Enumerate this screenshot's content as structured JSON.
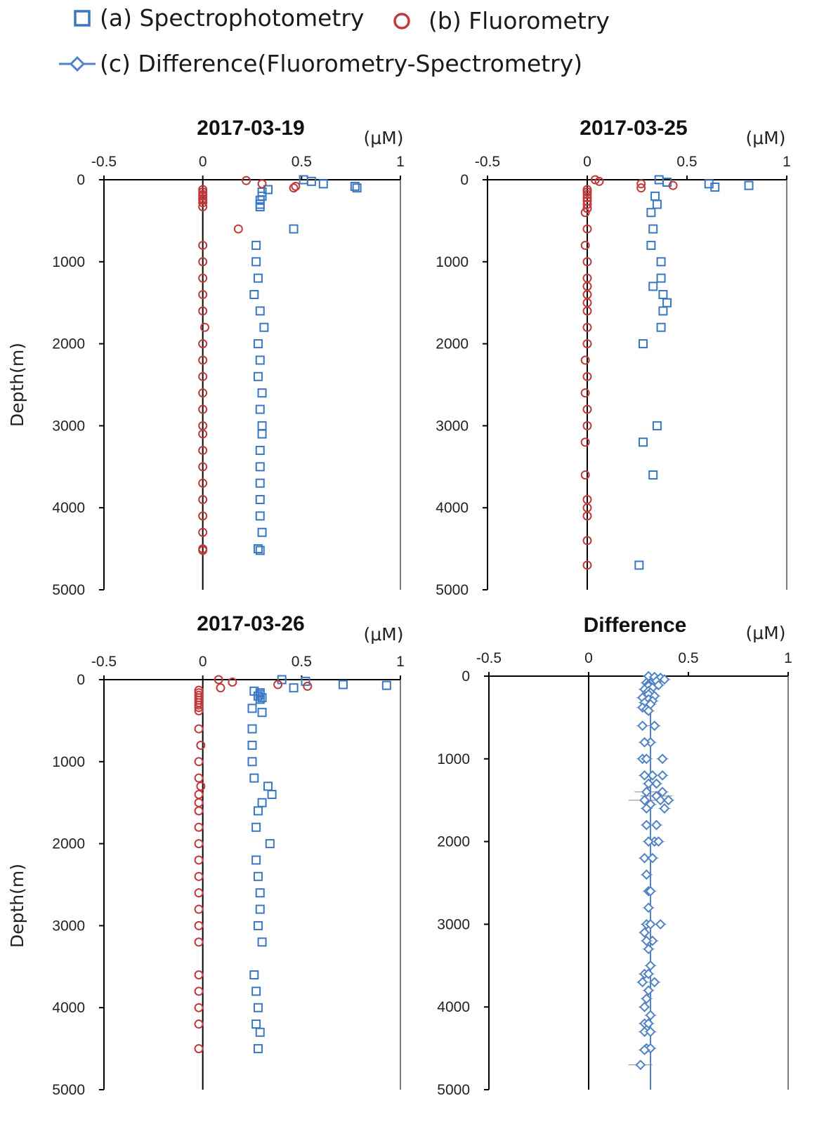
{
  "legend": [
    {
      "marker": "square",
      "label": "(a) Spectrophotometry"
    },
    {
      "marker": "circle",
      "label": "(b) Fluorometry"
    },
    {
      "marker": "diamond-line",
      "label": "(c) Difference(Fluorometry-Spectrometry)"
    }
  ],
  "colors": {
    "spectro": "#3a77c2",
    "fluoro": "#c0393b",
    "diff": "#4f82c6",
    "axis": "#000000"
  },
  "chart_data": [
    {
      "type": "scatter",
      "title": "2017-03-19",
      "unit": "(μM)",
      "ylabel": "Depth(m)",
      "xlim": [
        -0.5,
        1
      ],
      "ylim": [
        0,
        5000
      ],
      "y_inverted": true,
      "xticks": [
        "-0.5",
        "0",
        "0.5",
        "1"
      ],
      "yticks": [
        "0",
        "1000",
        "2000",
        "3000",
        "4000",
        "5000"
      ],
      "series": [
        {
          "key": "spectro",
          "marker": "square",
          "x": [
            0.51,
            0.55,
            0.61,
            0.77,
            0.78,
            0.33,
            0.3,
            0.3,
            0.29,
            0.29,
            0.29,
            0.46,
            0.27,
            0.27,
            0.28,
            0.26,
            0.29,
            0.31,
            0.28,
            0.29,
            0.28,
            0.3,
            0.29,
            0.3,
            0.3,
            0.29,
            0.29,
            0.29,
            0.29,
            0.29,
            0.3,
            0.28,
            0.29
          ],
          "y": [
            0,
            20,
            50,
            80,
            100,
            120,
            150,
            200,
            250,
            300,
            330,
            600,
            800,
            1000,
            1200,
            1400,
            1600,
            1800,
            2000,
            2200,
            2400,
            2600,
            2800,
            3000,
            3100,
            3300,
            3500,
            3700,
            3900,
            4100,
            4300,
            4500,
            4520
          ]
        },
        {
          "key": "fluoro",
          "marker": "circle",
          "x": [
            0.22,
            0.3,
            0.47,
            0.46,
            0,
            0,
            0,
            0,
            0,
            0,
            0,
            0,
            0.18,
            0,
            0,
            0,
            0,
            0,
            0.01,
            0,
            0,
            0,
            0,
            0,
            0,
            0,
            0,
            0,
            0,
            0,
            0,
            0,
            0,
            0
          ],
          "y": [
            10,
            50,
            80,
            100,
            120,
            150,
            180,
            200,
            230,
            250,
            280,
            330,
            600,
            800,
            1000,
            1200,
            1400,
            1600,
            1800,
            2000,
            2200,
            2400,
            2600,
            2800,
            3000,
            3100,
            3300,
            3500,
            3700,
            3900,
            4100,
            4300,
            4500,
            4520
          ]
        }
      ]
    },
    {
      "type": "scatter",
      "title": "2017-03-25",
      "unit": "(μM)",
      "xlim": [
        -0.5,
        1
      ],
      "ylim": [
        0,
        5000
      ],
      "y_inverted": true,
      "xticks": [
        "-0.5",
        "0",
        "0.5",
        "1"
      ],
      "yticks": [
        "0",
        "1000",
        "2000",
        "3000",
        "4000",
        "5000"
      ],
      "series": [
        {
          "key": "spectro",
          "marker": "square",
          "x": [
            0.36,
            0.4,
            0.61,
            0.64,
            0.81,
            0.34,
            0.35,
            0.32,
            0.33,
            0.32,
            0.37,
            0.37,
            0.33,
            0.38,
            0.4,
            0.38,
            0.37,
            0.28,
            0.35,
            0.28,
            0.33,
            0.26
          ],
          "y": [
            0,
            30,
            50,
            90,
            70,
            200,
            300,
            400,
            600,
            800,
            1000,
            1200,
            1300,
            1400,
            1500,
            1600,
            1800,
            2000,
            3000,
            3200,
            3600,
            4700
          ]
        },
        {
          "key": "fluoro",
          "marker": "circle",
          "x": [
            0.04,
            0.06,
            0.27,
            0.27,
            0.43,
            0,
            0,
            0,
            0,
            0,
            0,
            0,
            -0.01,
            0,
            -0.01,
            0,
            0,
            0,
            0,
            0,
            0,
            0,
            0,
            -0.01,
            0,
            -0.01,
            0,
            0,
            -0.01,
            -0.01,
            0,
            0,
            0
          ],
          "y": [
            0,
            20,
            50,
            100,
            70,
            120,
            150,
            180,
            220,
            260,
            300,
            350,
            400,
            600,
            800,
            1000,
            1200,
            1300,
            1400,
            1500,
            1600,
            1800,
            2000,
            2200,
            2400,
            2600,
            2800,
            3000,
            3200,
            3600,
            3900,
            4000,
            4100
          ]
        },
        {
          "key": "fluoro",
          "marker": "circle",
          "x": [
            0,
            0
          ],
          "y": [
            4400,
            4700
          ]
        }
      ]
    },
    {
      "type": "scatter",
      "title": "2017-03-26",
      "unit": "(μM)",
      "ylabel": "Depth(m)",
      "xlim": [
        -0.5,
        1
      ],
      "ylim": [
        0,
        5000
      ],
      "y_inverted": true,
      "xticks": [
        "-0.5",
        "0",
        "0.5",
        "1"
      ],
      "yticks": [
        "0",
        "1000",
        "2000",
        "3000",
        "4000",
        "5000"
      ],
      "series": [
        {
          "key": "spectro",
          "marker": "square",
          "x": [
            0.4,
            0.52,
            0.46,
            0.71,
            0.93,
            0.26,
            0.29,
            0.29,
            0.28,
            0.3,
            0.29,
            0.25,
            0.3,
            0.25,
            0.25,
            0.25,
            0.26,
            0.33,
            0.35,
            0.3,
            0.28,
            0.27,
            0.34,
            0.27,
            0.28,
            0.29,
            0.29,
            0.28,
            0.3,
            0.26,
            0.27,
            0.28,
            0.27,
            0.29,
            0.28
          ],
          "y": [
            0,
            20,
            100,
            60,
            70,
            140,
            160,
            180,
            200,
            220,
            240,
            350,
            400,
            600,
            800,
            1000,
            1200,
            1300,
            1400,
            1500,
            1600,
            1800,
            2000,
            2200,
            2400,
            2600,
            2800,
            3000,
            3200,
            3600,
            3800,
            4000,
            4200,
            4300,
            4500
          ]
        },
        {
          "key": "fluoro",
          "marker": "circle",
          "x": [
            0.08,
            0.15,
            0.38,
            0.53,
            0.09,
            -0.02,
            -0.02,
            -0.02,
            -0.02,
            -0.02,
            -0.02,
            -0.02,
            -0.02,
            -0.02,
            -0.02,
            -0.01,
            -0.02,
            -0.02,
            -0.01,
            -0.02,
            -0.02,
            -0.02,
            -0.02,
            -0.02,
            -0.02,
            -0.02,
            -0.02,
            -0.02,
            -0.02,
            -0.02,
            -0.02,
            -0.02,
            -0.02,
            -0.02,
            -0.02
          ],
          "y": [
            0,
            30,
            60,
            80,
            100,
            130,
            160,
            190,
            220,
            250,
            280,
            310,
            340,
            380,
            600,
            800,
            1000,
            1200,
            1300,
            1400,
            1500,
            1600,
            1800,
            2000,
            2200,
            2400,
            2600,
            2800,
            3000,
            3200,
            3600,
            3800,
            4000,
            4200,
            4500
          ]
        }
      ]
    },
    {
      "type": "scatter",
      "title": "Difference",
      "unit": "(μM)",
      "xlim": [
        -0.5,
        1
      ],
      "ylim": [
        0,
        5000
      ],
      "y_inverted": true,
      "xticks": [
        "-0.5",
        "0",
        "0.5",
        "1"
      ],
      "yticks": [
        "0",
        "1000",
        "2000",
        "3000",
        "4000",
        "5000"
      ],
      "mean_line": 0.31,
      "series": [
        {
          "key": "diff",
          "marker": "diamond",
          "x": [
            0.3,
            0.33,
            0.36,
            0.38,
            0.34,
            0.29,
            0.31,
            0.3,
            0.35,
            0.3,
            0.32,
            0.28,
            0.3,
            0.31,
            0.3,
            0.33,
            0.27,
            0.3,
            0.32,
            0.28,
            0.31,
            0.27,
            0.29,
            0.3,
            0.33,
            0.27,
            0.31,
            0.28,
            0.37,
            0.27,
            0.29,
            0.32,
            0.28,
            0.37,
            0.34,
            0.3,
            0.29,
            0.37,
            0.34,
            0.28,
            0.36,
            0.31,
            0.4,
            0.29,
            0.38,
            0.34,
            0.29,
            0.33,
            0.3,
            0.35,
            0.28,
            0.32,
            0.29,
            0.3,
            0.31,
            0.3,
            0.29,
            0.31,
            0.36,
            0.28,
            0.32,
            0.29,
            0.3,
            0.31,
            0.28,
            0.3,
            0.33,
            0.27,
            0.3,
            0.29,
            0.28,
            0.31,
            0.28,
            0.3,
            0.28,
            0.31,
            0.29,
            0.31,
            0.28,
            0.26
          ],
          "y": [
            0,
            10,
            20,
            40,
            60,
            80,
            90,
            100,
            110,
            120,
            140,
            160,
            180,
            200,
            220,
            240,
            260,
            280,
            300,
            320,
            340,
            380,
            400,
            420,
            600,
            600,
            800,
            800,
            1000,
            1000,
            1000,
            1200,
            1200,
            1200,
            1300,
            1300,
            1400,
            1400,
            1450,
            1500,
            1500,
            1550,
            1500,
            1600,
            1600,
            1800,
            1800,
            2000,
            2000,
            2000,
            2200,
            2200,
            2400,
            2600,
            2600,
            2800,
            3000,
            3000,
            3000,
            3100,
            3200,
            3200,
            3300,
            3500,
            3600,
            3600,
            3700,
            3700,
            3800,
            3900,
            4000,
            4100,
            4200,
            4200,
            4300,
            4300,
            4500,
            4500,
            4520,
            4700
          ],
          "err": [
            0.03,
            0.03,
            0.03,
            0.03,
            0.03,
            0.03,
            0.03,
            0.03,
            0.03,
            0.03,
            0.03,
            0.03,
            0.03,
            0.03,
            0.03,
            0.03,
            0.03,
            0.03,
            0.03,
            0.03,
            0.03,
            0.03,
            0.03,
            0.03,
            0.03,
            0.03,
            0.03,
            0.03,
            0.03,
            0.03,
            0.03,
            0.03,
            0.03,
            0.03,
            0.03,
            0.03,
            0.06,
            0.03,
            0.08,
            0.08,
            0.03,
            0.03,
            0.03,
            0.03,
            0.03,
            0.03,
            0.03,
            0.03,
            0.03,
            0.03,
            0.03,
            0.03,
            0.03,
            0.03,
            0.03,
            0.03,
            0.03,
            0.03,
            0.03,
            0.03,
            0.03,
            0.03,
            0.03,
            0.03,
            0.03,
            0.03,
            0.03,
            0.03,
            0.03,
            0.03,
            0.03,
            0.03,
            0.03,
            0.03,
            0.03,
            0.03,
            0.03,
            0.03,
            0.03,
            0.06
          ]
        }
      ]
    }
  ]
}
